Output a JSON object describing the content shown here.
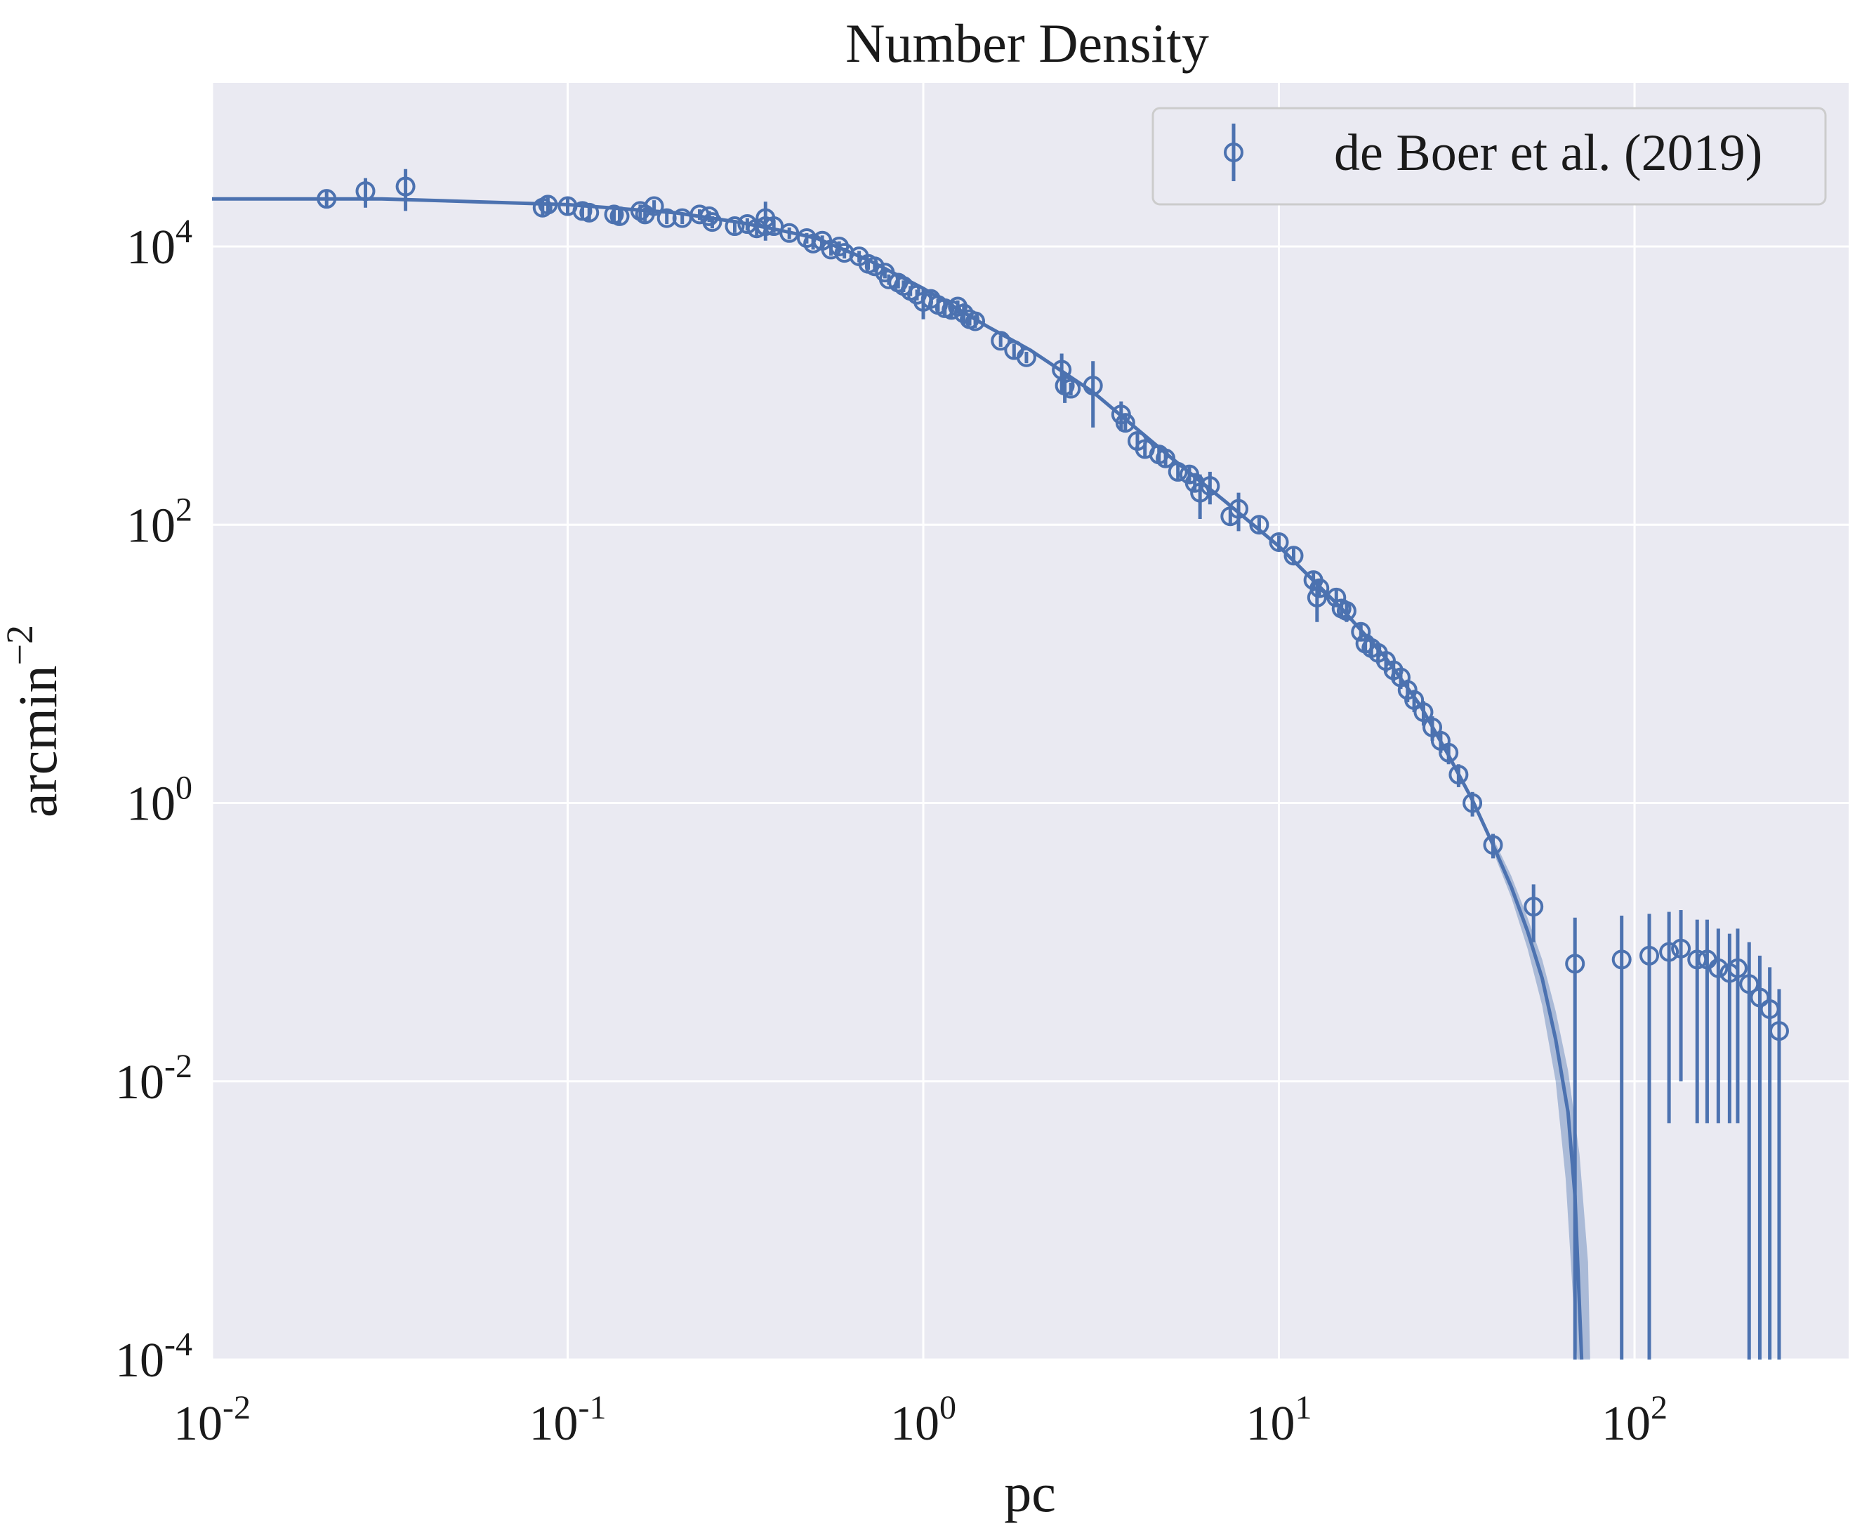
{
  "chart_data": {
    "type": "scatter",
    "title": "Number Density",
    "xlabel": "pc",
    "ylabel": "arcmin",
    "ylabel_exp": "−2",
    "xscale": "log",
    "yscale": "log",
    "xlim": [
      0.01,
      400
    ],
    "ylim": [
      0.0001,
      150000
    ],
    "grid": true,
    "legend_position": "top-right",
    "colors": {
      "series": "#4c72b0",
      "background": "#eaeaf2",
      "grid": "#ffffff"
    },
    "x_ticks": [
      {
        "value": 0.01,
        "base": "10",
        "exp": "-2"
      },
      {
        "value": 0.1,
        "base": "10",
        "exp": "-1"
      },
      {
        "value": 1,
        "base": "10",
        "exp": "0"
      },
      {
        "value": 10,
        "base": "10",
        "exp": "1"
      },
      {
        "value": 100,
        "base": "10",
        "exp": "2"
      }
    ],
    "y_ticks": [
      {
        "value": 0.0001,
        "base": "10",
        "exp": "-4"
      },
      {
        "value": 0.01,
        "base": "10",
        "exp": "-2"
      },
      {
        "value": 1,
        "base": "10",
        "exp": "0"
      },
      {
        "value": 100,
        "base": "10",
        "exp": "2"
      },
      {
        "value": 10000,
        "base": "10",
        "exp": "4"
      }
    ],
    "series": [
      {
        "name": "de Boer et al. (2019)",
        "marker": "open-circle",
        "points": [
          [
            0.021,
            22000,
            3000
          ],
          [
            0.027,
            25000,
            6000
          ],
          [
            0.035,
            27000,
            9000
          ],
          [
            0.085,
            19000,
            2500
          ],
          [
            0.088,
            20000,
            2500
          ],
          [
            0.1,
            19500,
            2500
          ],
          [
            0.11,
            18000,
            2000
          ],
          [
            0.115,
            17500,
            2000
          ],
          [
            0.135,
            17000,
            2000
          ],
          [
            0.14,
            16500,
            2000
          ],
          [
            0.16,
            18000,
            2000
          ],
          [
            0.165,
            17000,
            2000
          ],
          [
            0.175,
            19500,
            2000
          ],
          [
            0.19,
            16000,
            1500
          ],
          [
            0.21,
            16000,
            1500
          ],
          [
            0.235,
            17000,
            1500
          ],
          [
            0.25,
            16500,
            1500
          ],
          [
            0.255,
            15000,
            1500
          ],
          [
            0.295,
            14000,
            1500
          ],
          [
            0.32,
            14500,
            1500
          ],
          [
            0.34,
            13500,
            1500
          ],
          [
            0.36,
            14000,
            2000
          ],
          [
            0.36,
            16000,
            5000
          ],
          [
            0.38,
            14000,
            1500
          ],
          [
            0.42,
            12500,
            1200
          ],
          [
            0.47,
            11500,
            1000
          ],
          [
            0.49,
            10500,
            1000
          ],
          [
            0.52,
            11000,
            1000
          ],
          [
            0.55,
            9500,
            900
          ],
          [
            0.58,
            10000,
            900
          ],
          [
            0.6,
            9000,
            800
          ],
          [
            0.66,
            8500,
            800
          ],
          [
            0.7,
            7500,
            700
          ],
          [
            0.73,
            7200,
            700
          ],
          [
            0.78,
            6500,
            600
          ],
          [
            0.8,
            5800,
            500
          ],
          [
            0.85,
            5500,
            500
          ],
          [
            0.88,
            5200,
            500
          ],
          [
            0.92,
            4800,
            400
          ],
          [
            0.96,
            4500,
            400
          ],
          [
            1.0,
            4000,
            1000
          ],
          [
            1.05,
            4200,
            400
          ],
          [
            1.1,
            3800,
            400
          ],
          [
            1.15,
            3600,
            400
          ],
          [
            1.2,
            3500,
            400
          ],
          [
            1.25,
            3700,
            400
          ],
          [
            1.3,
            3300,
            600
          ],
          [
            1.35,
            3000,
            300
          ],
          [
            1.4,
            2900,
            300
          ],
          [
            1.65,
            2100,
            200
          ],
          [
            1.8,
            1800,
            200
          ],
          [
            1.95,
            1600,
            150
          ],
          [
            2.45,
            1300,
            400
          ],
          [
            2.5,
            1000,
            250
          ],
          [
            2.6,
            950,
            100
          ],
          [
            3.0,
            1000,
            500
          ],
          [
            3.6,
            620,
            150
          ],
          [
            3.7,
            540,
            80
          ],
          [
            4.0,
            400,
            50
          ],
          [
            4.2,
            350,
            40
          ],
          [
            4.6,
            320,
            40
          ],
          [
            4.8,
            300,
            35
          ],
          [
            5.2,
            240,
            30
          ],
          [
            5.6,
            230,
            30
          ],
          [
            5.8,
            200,
            30
          ],
          [
            6.0,
            170,
            60
          ],
          [
            6.4,
            190,
            50
          ],
          [
            7.3,
            115,
            15
          ],
          [
            7.7,
            130,
            40
          ],
          [
            8.8,
            100,
            12
          ],
          [
            10.0,
            75,
            9
          ],
          [
            11.0,
            60,
            8
          ],
          [
            12.5,
            40,
            6
          ],
          [
            12.8,
            30,
            10
          ],
          [
            13.0,
            35,
            5
          ],
          [
            14.5,
            30,
            4
          ],
          [
            15.0,
            25,
            4
          ],
          [
            15.5,
            24,
            4
          ],
          [
            17.0,
            17,
            2.5
          ],
          [
            17.5,
            14,
            2
          ],
          [
            18.2,
            13,
            2
          ],
          [
            19.0,
            12,
            2
          ],
          [
            20.0,
            10.5,
            1.8
          ],
          [
            21.0,
            9,
            1.5
          ],
          [
            22.0,
            8,
            1.4
          ],
          [
            23.0,
            6.5,
            1.2
          ],
          [
            24.0,
            5.5,
            1
          ],
          [
            25.5,
            4.5,
            0.9
          ],
          [
            27.0,
            3.5,
            0.7
          ],
          [
            28.5,
            2.8,
            0.5
          ],
          [
            30.0,
            2.3,
            0.4
          ],
          [
            32.0,
            1.6,
            0.3
          ],
          [
            35.0,
            1.0,
            0.2
          ],
          [
            40.0,
            0.5,
            0.1
          ],
          [
            52.0,
            0.18,
            0.08
          ],
          [
            68.0,
            0.07,
            0.08
          ],
          [
            92.0,
            0.075,
            0.08
          ],
          [
            110.0,
            0.08,
            0.08
          ],
          [
            125.0,
            0.085,
            0.08
          ],
          [
            135.0,
            0.09,
            0.08
          ],
          [
            150.0,
            0.075,
            0.07
          ],
          [
            160.0,
            0.075,
            0.07
          ],
          [
            172.0,
            0.065,
            0.06
          ],
          [
            185.0,
            0.06,
            0.055
          ],
          [
            195.0,
            0.065,
            0.06
          ],
          [
            210.0,
            0.05,
            0.05
          ],
          [
            225.0,
            0.04,
            0.04
          ],
          [
            240.0,
            0.033,
            0.033
          ],
          [
            255.0,
            0.023,
            0.023
          ]
        ]
      }
    ],
    "model_curve": {
      "style": "solid line with shaded uncertainty band",
      "points": [
        [
          0.01,
          22000
        ],
        [
          0.03,
          22000
        ],
        [
          0.1,
          20000
        ],
        [
          0.2,
          17500
        ],
        [
          0.3,
          15000
        ],
        [
          0.4,
          13000
        ],
        [
          0.5,
          11500
        ],
        [
          0.7,
          8000
        ],
        [
          1.0,
          5000
        ],
        [
          1.5,
          2700
        ],
        [
          2.0,
          1800
        ],
        [
          3.0,
          900
        ],
        [
          5.0,
          300
        ],
        [
          7.0,
          150
        ],
        [
          10.0,
          70
        ],
        [
          15.0,
          25
        ],
        [
          20.0,
          11
        ],
        [
          25.0,
          5
        ],
        [
          30.0,
          2.2
        ],
        [
          35.0,
          1.05
        ],
        [
          40.0,
          0.5
        ],
        [
          45.0,
          0.25
        ],
        [
          50.0,
          0.12
        ],
        [
          55.0,
          0.055
        ],
        [
          60.0,
          0.02
        ],
        [
          65.0,
          0.006
        ],
        [
          68.0,
          0.0015
        ],
        [
          71.0,
          0.0001
        ]
      ],
      "band_low": [
        [
          40.0,
          0.45
        ],
        [
          45.0,
          0.21
        ],
        [
          50.0,
          0.09
        ],
        [
          55.0,
          0.035
        ],
        [
          60.0,
          0.01
        ],
        [
          64.0,
          0.002
        ],
        [
          67.0,
          0.0003
        ],
        [
          69.0,
          0.0001
        ]
      ],
      "band_high": [
        [
          40.0,
          0.56
        ],
        [
          45.0,
          0.3
        ],
        [
          50.0,
          0.15
        ],
        [
          55.0,
          0.075
        ],
        [
          60.0,
          0.032
        ],
        [
          65.0,
          0.012
        ],
        [
          70.0,
          0.003
        ],
        [
          74.0,
          0.0005
        ],
        [
          75.0,
          0.0001
        ]
      ]
    }
  }
}
